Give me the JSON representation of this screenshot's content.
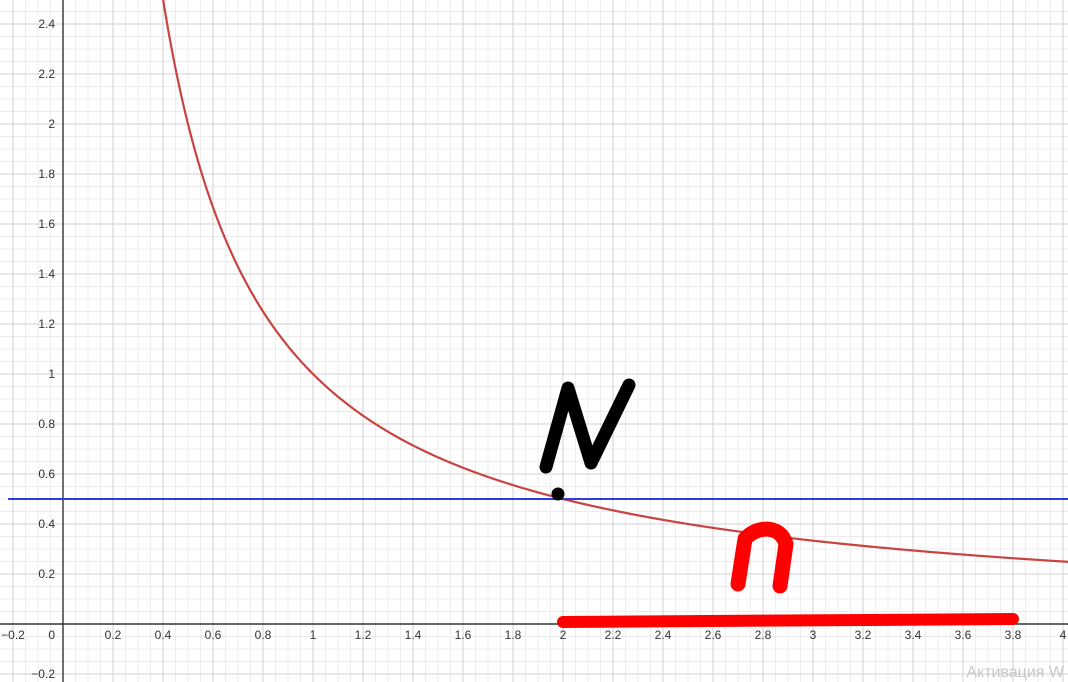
{
  "chart_data": {
    "type": "line",
    "title": "",
    "xlabel": "",
    "ylabel": "",
    "xlim": [
      -0.22,
      4.03
    ],
    "ylim": [
      -0.23,
      2.5
    ],
    "grid": true,
    "x_ticks": [
      "−0.2",
      "0",
      "0.2",
      "0.4",
      "0.6",
      "0.8",
      "1",
      "1.2",
      "1.4",
      "1.6",
      "1.8",
      "2",
      "2.2",
      "2.4",
      "2.6",
      "2.8",
      "3",
      "3.2",
      "3.4",
      "3.6",
      "3.8",
      "4"
    ],
    "y_ticks": [
      "−0.2",
      "0.2",
      "0.4",
      "0.6",
      "0.8",
      "1",
      "1.2",
      "1.4",
      "1.6",
      "1.8",
      "2",
      "2.2",
      "2.4"
    ],
    "series": [
      {
        "formula": "y = 1/x",
        "color": "#c74440",
        "x": [
          0.4,
          0.5,
          0.6,
          0.7,
          0.8,
          1.0,
          1.2,
          1.4,
          1.6,
          1.8,
          2.0,
          2.4,
          2.8,
          3.2,
          3.6,
          4.0
        ],
        "y": [
          2.5,
          2.0,
          1.667,
          1.429,
          1.25,
          1.0,
          0.833,
          0.714,
          0.625,
          0.556,
          0.5,
          0.417,
          0.357,
          0.3125,
          0.278,
          0.25
        ]
      },
      {
        "formula": "y = 0.5",
        "color": "#2d3cdc",
        "x": [
          -0.22,
          4.03
        ],
        "y": [
          0.5,
          0.5
        ]
      }
    ],
    "point": {
      "x": 1.98,
      "y": 0.52,
      "color": "#000000"
    },
    "annotations": [
      {
        "text": "N",
        "color": "#000000"
      },
      {
        "text": "n",
        "color": "#ff0000"
      }
    ],
    "highlight_segment": {
      "x": [
        2.0,
        3.8
      ],
      "y": 0.02,
      "color": "#ff0000"
    }
  },
  "watermark": "Активация W"
}
